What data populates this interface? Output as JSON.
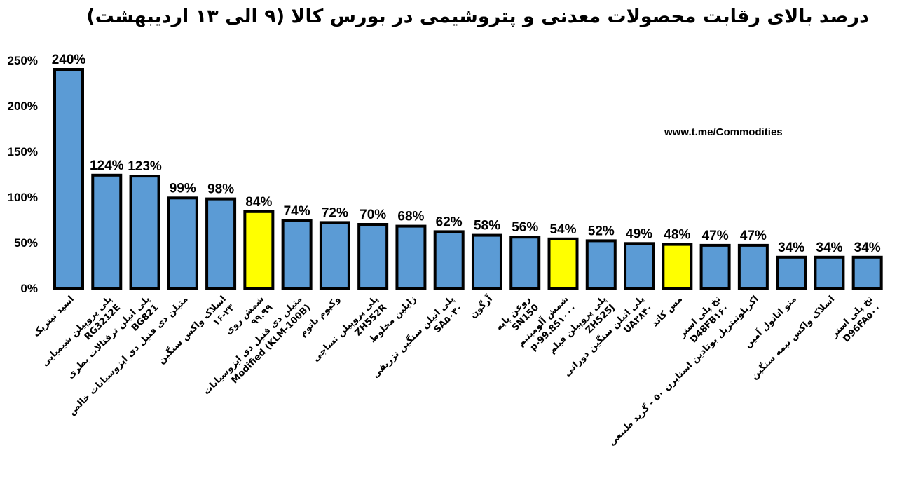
{
  "chart_data": {
    "type": "bar",
    "title": "درصد بالای رقابت محصولات معدنی و پتروشیمی در بورس کالا (۹ الی ۱۳ اردیبهشت)",
    "watermark": "www.t.me/Commodities",
    "xlabel": "",
    "ylabel": "",
    "ylim": [
      0,
      250
    ],
    "yticks": [
      "0%",
      "50%",
      "100%",
      "150%",
      "200%",
      "250%"
    ],
    "grid": false,
    "legend": "none",
    "colors": {
      "default": "#5b9bd5",
      "highlight": "#ffff00",
      "outline": "#000000"
    },
    "categories": [
      [
        "اسید نیتریک"
      ],
      [
        "پلی پروپیلن شیمیایی",
        "RG3212E"
      ],
      [
        "پلی اتیلن ترفتالات بطری",
        "BG821"
      ],
      [
        "متیلن دی فنیل دی ایزوسیانات خالص"
      ],
      [
        "اسلاک واکس سنگین",
        "۱۶-۲۳"
      ],
      [
        "شمش روی",
        "۹۹.۹۹"
      ],
      [
        "متیلن دی فنیل دی ایزوسیانات",
        "Modified (KLM-100B)"
      ],
      [
        "وکیوم باتوم"
      ],
      [
        "پلی پروپیلن نساجی",
        "ZH552R"
      ],
      [
        "زایلین مخلوط"
      ],
      [
        "پلی اتیلن سنگین تزریقی",
        "SA۵۰۳۰"
      ],
      [
        "آرگون"
      ],
      [
        "روغن پایه",
        "SN150"
      ],
      [
        "شمش آلومینیم",
        "p-99.85۱۰۰۰"
      ],
      [
        "پلی پروپیلن فیلم",
        "ZH525J"
      ],
      [
        "پلی اتیلن سنگین دورانی",
        "UA۳۸۴۰"
      ],
      [
        "مس کاتد"
      ],
      [
        "نخ پلی استر",
        "D48FB۱۶۰"
      ],
      [
        "اکریلونیتریل بوتادین استایرن ۵۰ - گرید طبیعی"
      ],
      [
        "منو اتانول آمین"
      ],
      [
        "اسلاک واکس نیمه سنگین"
      ],
      [
        "نخ پلی استر",
        "D96FA۵۰۰"
      ]
    ],
    "values": [
      240,
      124,
      123,
      99,
      98,
      84,
      74,
      72,
      70,
      68,
      62,
      58,
      56,
      54,
      52,
      49,
      48,
      47,
      47,
      34,
      34,
      34
    ],
    "data_labels": [
      "240%",
      "124%",
      "123%",
      "99%",
      "98%",
      "84%",
      "74%",
      "72%",
      "70%",
      "68%",
      "62%",
      "58%",
      "56%",
      "54%",
      "52%",
      "49%",
      "48%",
      "47%",
      "47%",
      "34%",
      "34%",
      "34%"
    ],
    "highlight_indices": [
      5,
      13,
      16
    ]
  }
}
